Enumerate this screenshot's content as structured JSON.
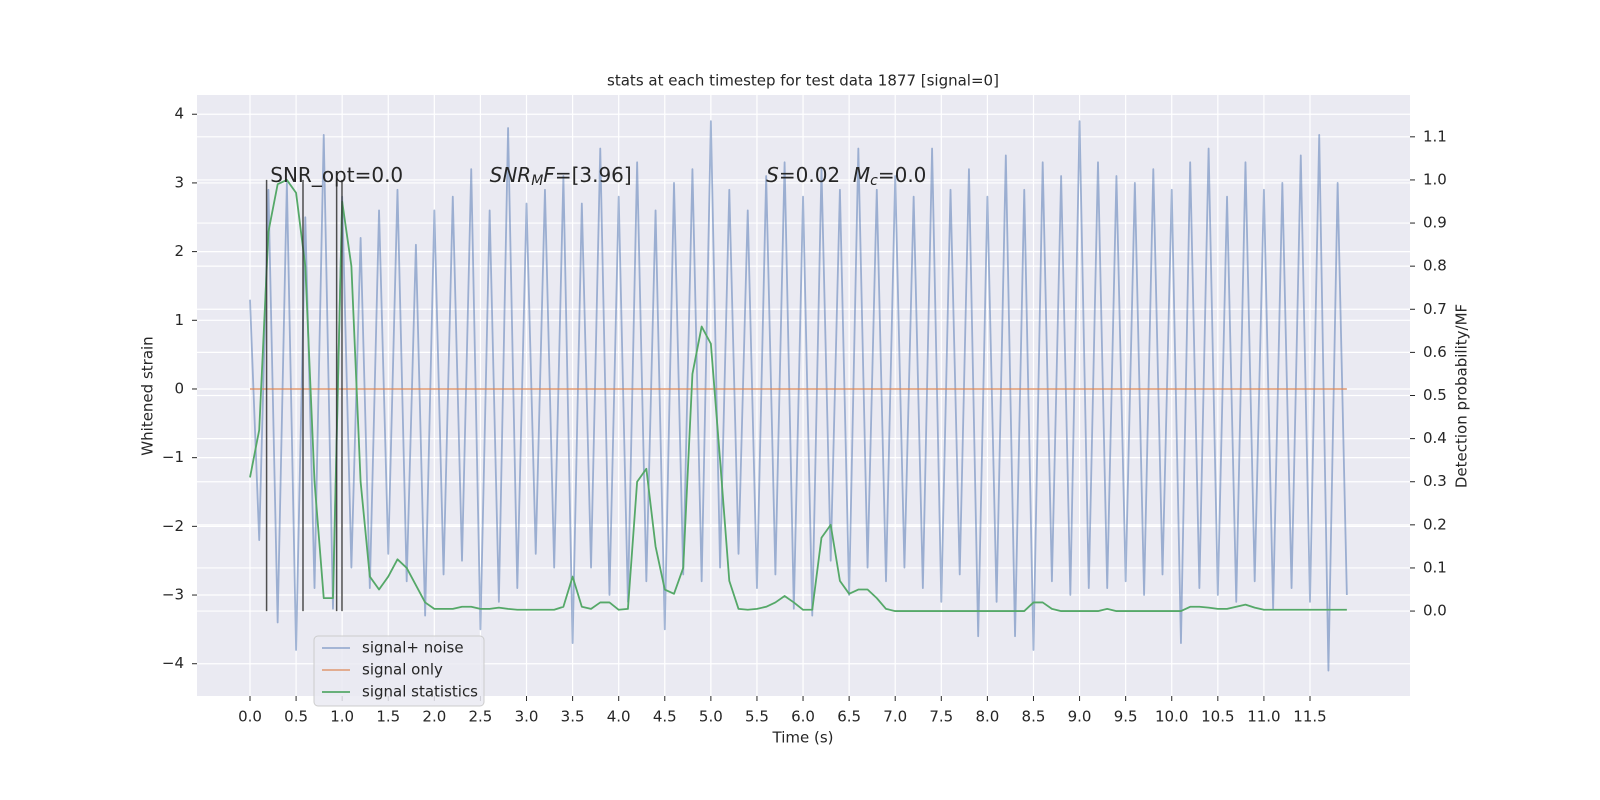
{
  "chart_data": {
    "type": "line",
    "title": "stats at each timestep for test data 1877 [signal=0]",
    "xlabel": "Time (s)",
    "ylabel": "Whitened strain",
    "y2label": "Detection probability/MF",
    "grid": true,
    "legend": "lower left",
    "background": "#eaeaf2",
    "x": [
      0.0,
      0.1,
      0.2,
      0.3,
      0.4,
      0.5,
      0.6,
      0.7,
      0.8,
      0.9,
      1.0,
      1.1,
      1.2,
      1.3,
      1.4,
      1.5,
      1.6,
      1.7,
      1.8,
      1.9,
      2.0,
      2.1,
      2.2,
      2.3,
      2.4,
      2.5,
      2.6,
      2.7,
      2.8,
      2.9,
      3.0,
      3.1,
      3.2,
      3.3,
      3.4,
      3.5,
      3.6,
      3.7,
      3.8,
      3.9,
      4.0,
      4.1,
      4.2,
      4.3,
      4.4,
      4.5,
      4.6,
      4.7,
      4.8,
      4.9,
      5.0,
      5.1,
      5.2,
      5.3,
      5.4,
      5.5,
      5.6,
      5.7,
      5.8,
      5.9,
      6.0,
      6.1,
      6.2,
      6.3,
      6.4,
      6.5,
      6.6,
      6.7,
      6.8,
      6.9,
      7.0,
      7.1,
      7.2,
      7.3,
      7.4,
      7.5,
      7.6,
      7.7,
      7.8,
      7.9,
      8.0,
      8.1,
      8.2,
      8.3,
      8.4,
      8.5,
      8.6,
      8.7,
      8.8,
      8.9,
      9.0,
      9.1,
      9.2,
      9.3,
      9.4,
      9.5,
      9.6,
      9.7,
      9.8,
      9.9,
      10.0,
      10.1,
      10.2,
      10.3,
      10.4,
      10.5,
      10.6,
      10.7,
      10.8,
      10.9,
      11.0,
      11.1,
      11.2,
      11.3,
      11.4,
      11.5,
      11.6,
      11.7,
      11.8,
      11.9
    ],
    "series": [
      {
        "name": "signal+ noise",
        "color": "#4c72b0",
        "alpha": 0.5,
        "axis": "y",
        "values": [
          1.3,
          -2.2,
          2.9,
          -3.4,
          3.0,
          -3.8,
          2.5,
          -2.9,
          3.7,
          -3.2,
          2.8,
          -2.6,
          2.2,
          -2.9,
          2.6,
          -2.4,
          2.9,
          -2.8,
          2.1,
          -3.3,
          2.6,
          -2.7,
          2.8,
          -2.5,
          3.2,
          -3.5,
          2.6,
          -3.1,
          3.8,
          -2.9,
          2.7,
          -2.4,
          2.9,
          -2.6,
          3.1,
          -3.7,
          2.7,
          -2.6,
          3.5,
          -3.0,
          2.8,
          -3.1,
          3.3,
          -2.8,
          2.6,
          -3.5,
          3.0,
          -2.7,
          3.2,
          -2.8,
          3.9,
          -2.6,
          2.9,
          -2.4,
          2.6,
          -2.9,
          3.1,
          -2.7,
          3.3,
          -3.2,
          2.8,
          -3.3,
          3.2,
          -2.5,
          2.9,
          -3.0,
          3.5,
          -2.6,
          2.9,
          -2.8,
          3.1,
          -2.6,
          2.8,
          -2.9,
          3.5,
          -3.1,
          2.9,
          -2.7,
          3.2,
          -3.6,
          2.8,
          -3.1,
          3.4,
          -3.6,
          2.9,
          -3.8,
          3.3,
          -2.8,
          3.1,
          -3.0,
          3.9,
          -2.9,
          3.3,
          -2.9,
          3.1,
          -2.8,
          3.0,
          -3.0,
          3.2,
          -2.7,
          2.9,
          -3.7,
          3.3,
          -2.9,
          3.5,
          -3.0,
          2.8,
          -3.1,
          3.3,
          -2.8,
          2.9,
          -3.2,
          3.0,
          -2.9,
          3.4,
          -3.1,
          3.7,
          -4.1,
          3.0,
          -3.0
        ]
      },
      {
        "name": "signal only",
        "color": "#dd8452",
        "alpha": 0.7,
        "axis": "y",
        "values": [
          0,
          0,
          0,
          0,
          0,
          0,
          0,
          0,
          0,
          0,
          0,
          0,
          0,
          0,
          0,
          0,
          0,
          0,
          0,
          0,
          0,
          0,
          0,
          0,
          0,
          0,
          0,
          0,
          0,
          0,
          0,
          0,
          0,
          0,
          0,
          0,
          0,
          0,
          0,
          0,
          0,
          0,
          0,
          0,
          0,
          0,
          0,
          0,
          0,
          0,
          0,
          0,
          0,
          0,
          0,
          0,
          0,
          0,
          0,
          0,
          0,
          0,
          0,
          0,
          0,
          0,
          0,
          0,
          0,
          0,
          0,
          0,
          0,
          0,
          0,
          0,
          0,
          0,
          0,
          0,
          0,
          0,
          0,
          0,
          0,
          0,
          0,
          0,
          0,
          0,
          0,
          0,
          0,
          0,
          0,
          0,
          0,
          0,
          0,
          0,
          0,
          0,
          0,
          0,
          0,
          0,
          0,
          0,
          0,
          0,
          0,
          0,
          0,
          0,
          0,
          0,
          0,
          0,
          0,
          0
        ]
      },
      {
        "name": "signal statistics",
        "color": "#55a868",
        "alpha": 1,
        "axis": "y2",
        "values": [
          0.31,
          0.42,
          0.88,
          0.99,
          1.0,
          0.97,
          0.8,
          0.3,
          0.03,
          0.03,
          0.95,
          0.8,
          0.3,
          0.08,
          0.05,
          0.08,
          0.12,
          0.1,
          0.06,
          0.02,
          0.005,
          0.005,
          0.005,
          0.01,
          0.01,
          0.005,
          0.005,
          0.008,
          0.005,
          0.003,
          0.003,
          0.003,
          0.003,
          0.003,
          0.01,
          0.08,
          0.01,
          0.005,
          0.02,
          0.02,
          0.003,
          0.005,
          0.3,
          0.33,
          0.15,
          0.05,
          0.04,
          0.1,
          0.55,
          0.66,
          0.62,
          0.35,
          0.07,
          0.005,
          0.003,
          0.005,
          0.01,
          0.02,
          0.035,
          0.02,
          0.003,
          0.003,
          0.17,
          0.2,
          0.07,
          0.04,
          0.05,
          0.05,
          0.03,
          0.005,
          0.0,
          0.0,
          0.0,
          0.0,
          0.0,
          0.0,
          0.0,
          0.0,
          0.0,
          0.0,
          0.0,
          0.0,
          0.0,
          0.0,
          0.0,
          0.02,
          0.02,
          0.005,
          0.0,
          0.0,
          0.0,
          0.0,
          0.0,
          0.005,
          0.0,
          0.0,
          0.0,
          0.0,
          0.0,
          0.0,
          0.0,
          0.0,
          0.01,
          0.01,
          0.008,
          0.005,
          0.005,
          0.01,
          0.015,
          0.008,
          0.003,
          0.003,
          0.003,
          0.003,
          0.003,
          0.003,
          0.003,
          0.003,
          0.003,
          0.003
        ]
      }
    ],
    "vlines": {
      "color": "#333333",
      "x": [
        0.18,
        0.575,
        0.94,
        0.998
      ],
      "ymin": 0,
      "ymax": 1.0
    },
    "annotations": [
      {
        "x": 0.22,
        "y": 3.1,
        "parts": [
          {
            "text": "SNR_opt=0.0",
            "style": "normal"
          }
        ]
      },
      {
        "x": 2.6,
        "y": 3.1,
        "parts": [
          {
            "text": "SNR",
            "style": "italic"
          },
          {
            "text": "M",
            "style": "sub"
          },
          {
            "text": "F",
            "style": "italic"
          },
          {
            "text": "=[3.96]",
            "style": "normal"
          }
        ]
      },
      {
        "x": 5.6,
        "y": 3.1,
        "parts": [
          {
            "text": "S",
            "style": "italic"
          },
          {
            "text": "=0.02  ",
            "style": "normal"
          },
          {
            "text": "M",
            "style": "italic"
          },
          {
            "text": "c",
            "style": "sub"
          },
          {
            "text": "=0.0",
            "style": "normal"
          }
        ]
      }
    ],
    "xlim": [
      -0.575,
      12.585
    ],
    "xticks": [
      {
        "value": 0,
        "label": "0.0"
      },
      0.5,
      {
        "value": 1,
        "label": "1.0"
      },
      1.5,
      {
        "value": 2,
        "label": "2.0"
      },
      2.5,
      {
        "value": 3,
        "label": "3.0"
      },
      3.5,
      {
        "value": 4,
        "label": "4.0"
      },
      4.5,
      {
        "value": 5,
        "label": "5.0"
      },
      5.5,
      {
        "value": 6,
        "label": "6.0"
      },
      6.5,
      {
        "value": 7,
        "label": "7.0"
      },
      7.5,
      {
        "value": 8,
        "label": "8.0"
      },
      8.5,
      {
        "value": 9,
        "label": "9.0"
      },
      9.5,
      {
        "value": 10,
        "label": "10.0"
      },
      10.5,
      {
        "value": 11,
        "label": "11.0"
      },
      11.5
    ],
    "ylim": [
      -4.47,
      4.28
    ],
    "yticks": [
      {
        "value": -4,
        "label": "−4"
      },
      {
        "value": -3,
        "label": "−3"
      },
      {
        "value": -2,
        "label": "−2"
      },
      {
        "value": -1,
        "label": "−1"
      },
      0,
      1,
      2,
      3,
      4
    ],
    "y2lim": [
      -0.197,
      1.197
    ],
    "y2ticks": [
      {
        "value": 0,
        "label": "0.0"
      },
      0.1,
      0.2,
      0.3,
      0.4,
      0.5,
      0.6,
      0.7,
      0.8,
      0.9,
      {
        "value": 1,
        "label": "1.0"
      },
      1.1
    ]
  }
}
